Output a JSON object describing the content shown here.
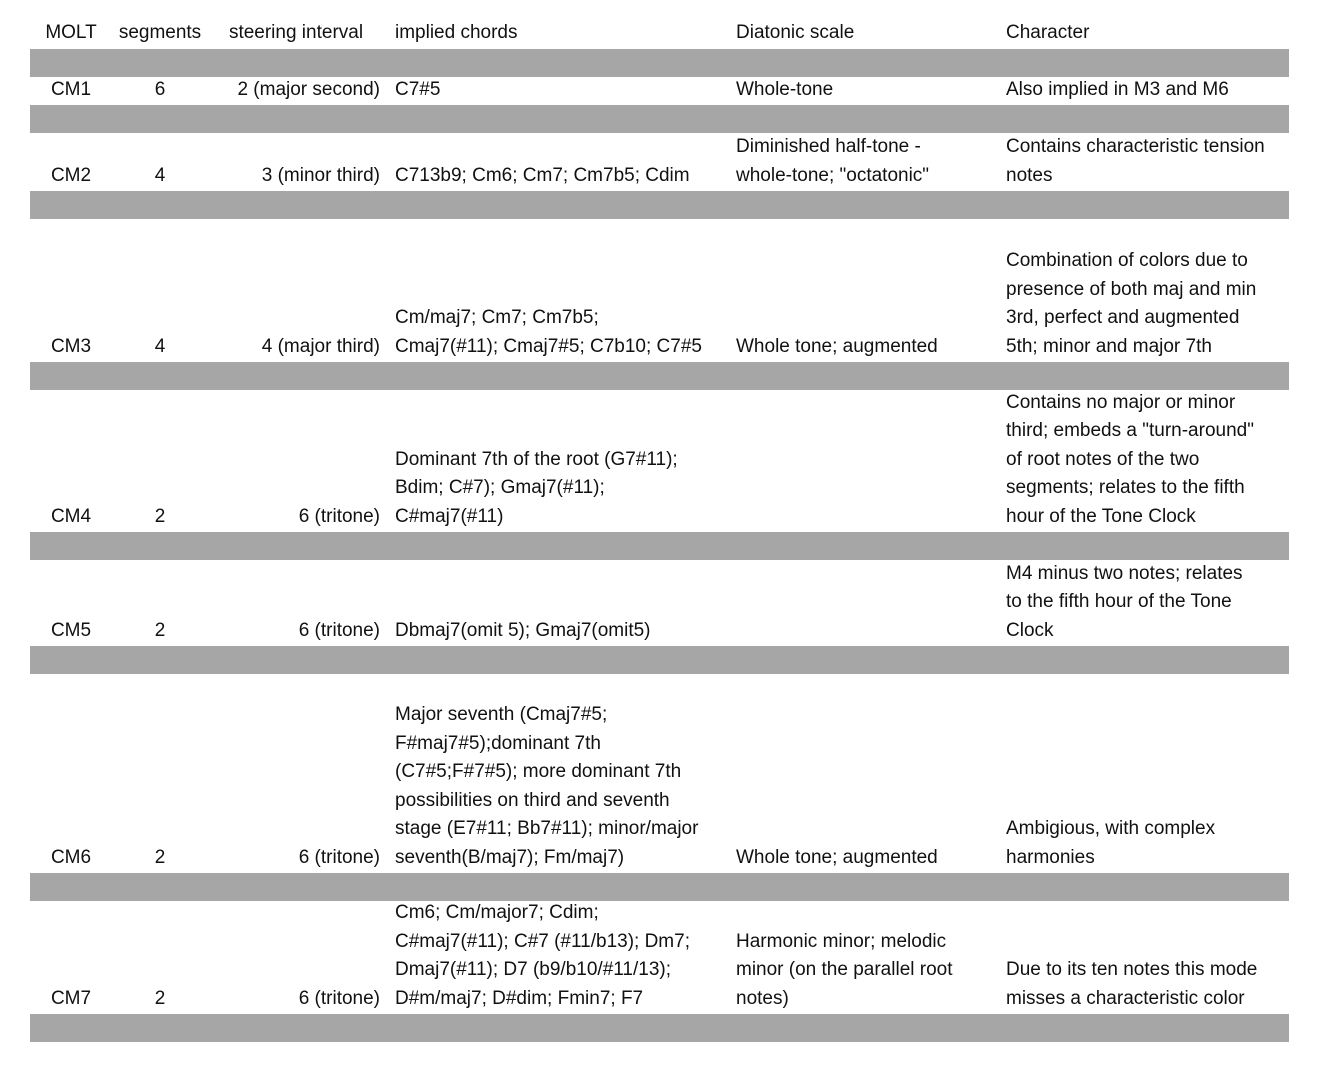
{
  "header": [
    "MOLT",
    "segments",
    "steering interval",
    "implied chords",
    "Diatonic scale",
    "Character"
  ],
  "separator_color": "#a6a6a6",
  "rows": [
    {
      "molt": "CM1",
      "segments": "6",
      "interval": "2 (major second)",
      "chords": "C7#5",
      "scale": "Whole-tone",
      "character": "Also implied in M3 and M6"
    },
    {
      "molt": "CM2",
      "segments": "4",
      "interval": "3 (minor third)",
      "chords": "C713b9; Cm6; Cm7; Cm7b5; Cdim",
      "scale": "Diminished half-tone -\nwhole-tone; \"octatonic\"",
      "character": "Contains characteristic tension\nnotes"
    },
    {
      "molt": "CM3",
      "segments": "4",
      "interval": "4 (major third)",
      "chords": "Cm/maj7; Cm7; Cm7b5;\nCmaj7(#11); Cmaj7#5; C7b10; C7#5",
      "scale": "Whole tone; augmented",
      "character": "Combination of colors due to\npresence of both maj  and min\n3rd, perfect and augmented\n5th; minor and major 7th"
    },
    {
      "molt": "CM4",
      "segments": "2",
      "interval": "6 (tritone)",
      "chords": "Dominant 7th of the root (G7#11);\nBdim; C#7); Gmaj7(#11);\nC#maj7(#11)",
      "scale": "",
      "character": "Contains no major or minor\nthird; embeds a \"turn-around\"\nof root notes of the two\nsegments; relates to the fifth\nhour of the Tone Clock"
    },
    {
      "molt": "CM5",
      "segments": "2",
      "interval": "6 (tritone)",
      "chords": "Dbmaj7(omit 5); Gmaj7(omit5)",
      "scale": "",
      "character": "M4 minus two notes; relates\nto the fifth hour of the Tone\nClock"
    },
    {
      "molt": "CM6",
      "segments": "2",
      "interval": "6 (tritone)",
      "chords": "Major seventh (Cmaj7#5;\nF#maj7#5);dominant 7th\n(C7#5;F#7#5); more dominant 7th\npossibilities on third and seventh\nstage (E7#11; Bb7#11); minor/major\nseventh(B/maj7); Fm/maj7)",
      "scale": "Whole tone; augmented",
      "character": "Ambigious, with complex\nharmonies"
    },
    {
      "molt": "CM7",
      "segments": "2",
      "interval": "6 (tritone)",
      "chords": "Cm6; Cm/major7; Cdim;\nC#maj7(#11); C#7 (#11/b13); Dm7;\nDmaj7(#11); D7 (b9/b10/#11/13);\nD#m/maj7; D#dim; Fmin7; F7",
      "scale": "Harmonic minor; melodic\nminor (on the parallel root\nnotes)",
      "character": "Due to its ten notes this mode\nmisses a characteristic color"
    }
  ]
}
